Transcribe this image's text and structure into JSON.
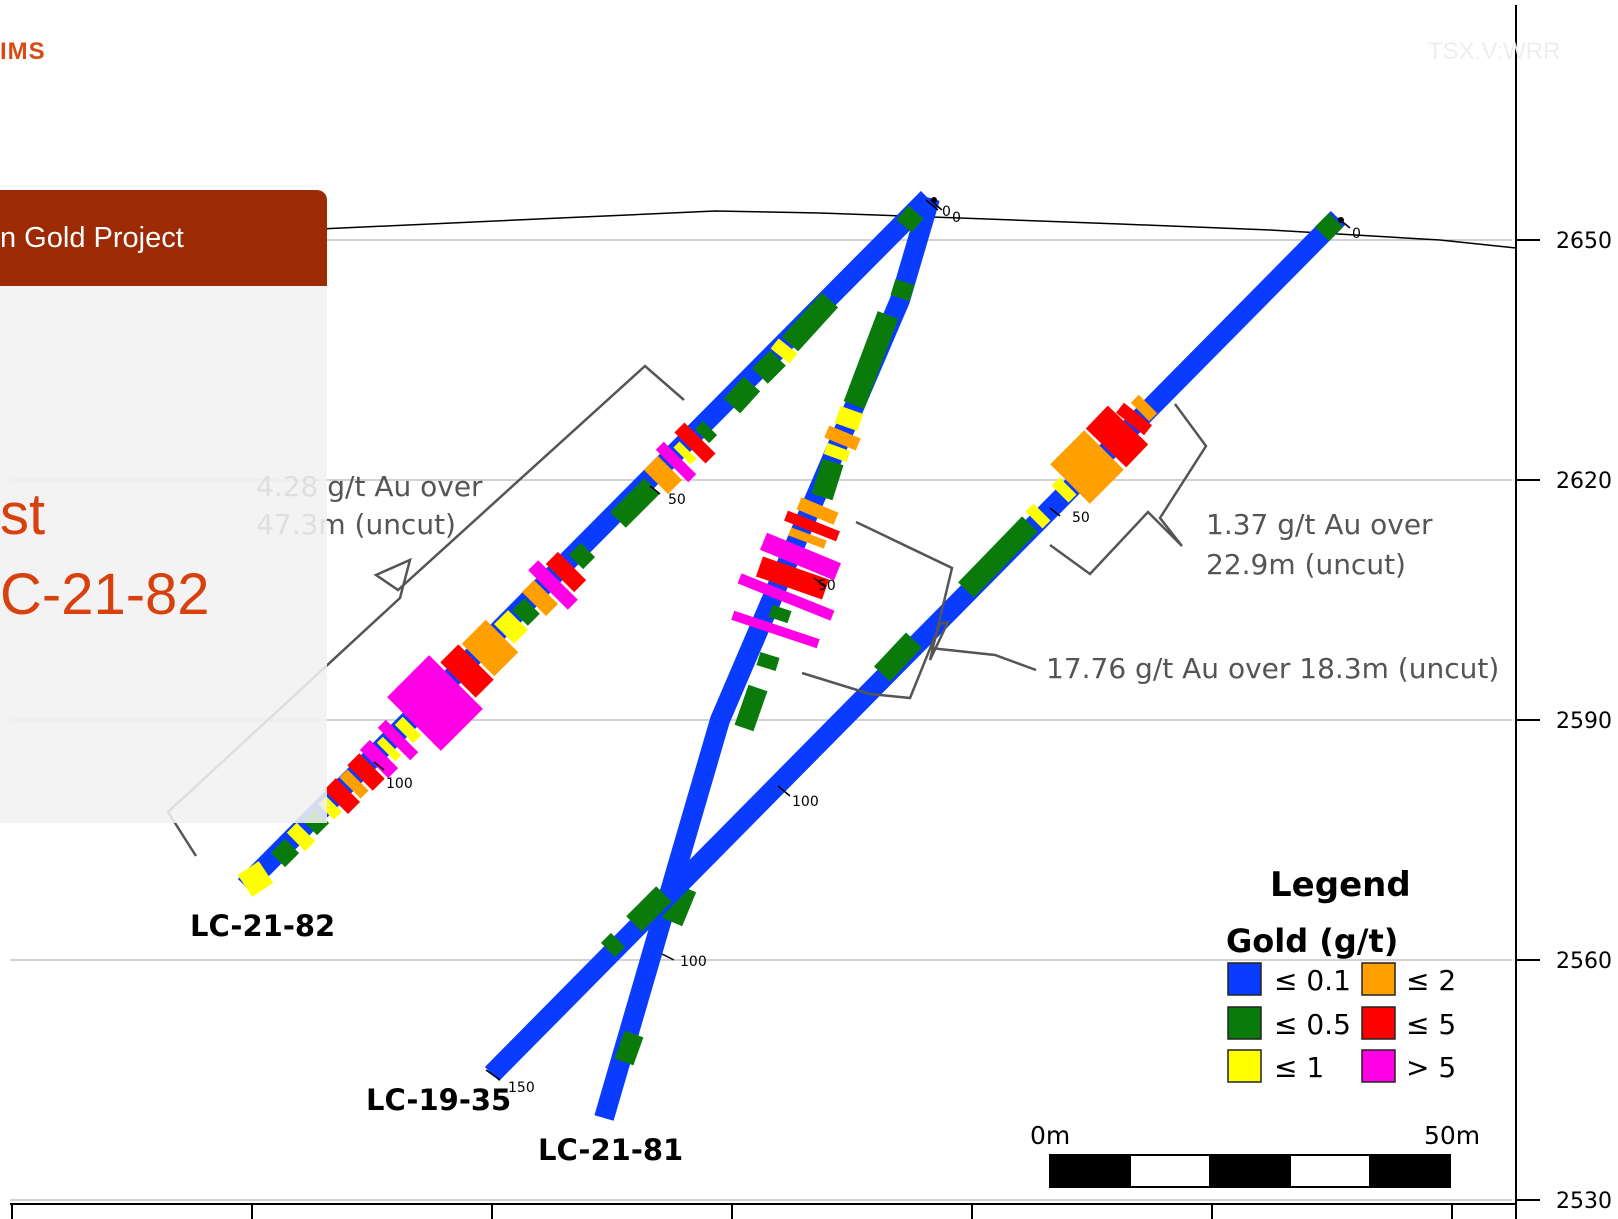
{
  "header": {
    "brand_fragment": "IMS",
    "ticker": "TSX.V:WRR",
    "project_title_fragment": "n Gold Project"
  },
  "panel": {
    "line1_fragment": "st",
    "line2_fragment": "C-21-82",
    "panel_color": "#f1f1f1",
    "title_bar_color": "#9b2a05",
    "accent_color": "#d8400e"
  },
  "elevation_axis": {
    "unit": "m",
    "ticks": [
      "2650",
      "2620",
      "2590",
      "2560",
      "2530"
    ]
  },
  "drillholes": [
    {
      "name": "LC-21-82",
      "depth_ticks": [
        "0",
        "50",
        "100"
      ],
      "color_note": "intervals colored by gold grade"
    },
    {
      "name": "LC-21-81",
      "depth_ticks": [
        "0",
        "50",
        "100"
      ],
      "color_note": "intervals colored by gold grade"
    },
    {
      "name": "LC-19-35",
      "depth_ticks": [
        "0",
        "50",
        "100",
        "150"
      ],
      "color_note": "intervals colored by gold grade"
    }
  ],
  "intercepts": [
    {
      "hole": "LC-21-82",
      "line1": "4.28 g/t Au over",
      "line2": "47.3m (uncut)"
    },
    {
      "hole": "LC-19-35",
      "line1": "1.37 g/t Au over",
      "line2": "22.9m (uncut)"
    },
    {
      "hole": "LC-21-81",
      "text": "17.76 g/t Au over 18.3m (uncut)"
    }
  ],
  "legend": {
    "title": "Legend",
    "subtitle": "Gold (g/t)",
    "items": [
      {
        "label": "≤ 0.1",
        "color": "#0a3cff"
      },
      {
        "label": "≤ 0.5",
        "color": "#0a7a0a"
      },
      {
        "label": "≤ 1",
        "color": "#ffff00"
      },
      {
        "label": "≤ 2",
        "color": "#ff9f00"
      },
      {
        "label": "≤ 5",
        "color": "#ff0000"
      },
      {
        "label": "> 5",
        "color": "#ff00e6"
      }
    ]
  },
  "scale_bar": {
    "start_label": "0m",
    "end_label": "50m"
  }
}
